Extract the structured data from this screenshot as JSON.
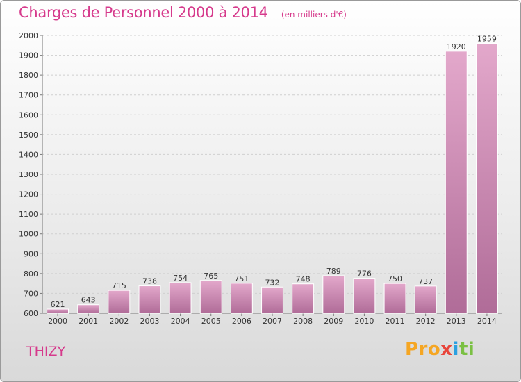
{
  "header": {
    "title": "Charges de Personnel 2000 à 2014",
    "unit": "(en milliers d'€)"
  },
  "commune": "THIZY",
  "logo": {
    "text": "Proxiti",
    "parts": [
      "Pro",
      "x",
      "i",
      "ti"
    ]
  },
  "colors": {
    "accent": "#d63a8c",
    "bar_light": "#e3a8cb",
    "bar_dark": "#b06c98"
  },
  "chart_data": {
    "type": "bar",
    "title": "Charges de Personnel 2000 à 2014",
    "subtitle": "(en milliers d'€)",
    "categories": [
      "2000",
      "2001",
      "2002",
      "2003",
      "2004",
      "2005",
      "2006",
      "2007",
      "2008",
      "2009",
      "2010",
      "2011",
      "2012",
      "2013",
      "2014"
    ],
    "values": [
      621,
      643,
      715,
      738,
      754,
      765,
      751,
      732,
      748,
      789,
      776,
      750,
      737,
      1920,
      1959
    ],
    "ylim": [
      600,
      2000
    ],
    "yticks": [
      600,
      700,
      800,
      900,
      1000,
      1100,
      1200,
      1300,
      1400,
      1500,
      1600,
      1700,
      1800,
      1900,
      2000
    ],
    "grid": true,
    "xlabel": "",
    "ylabel": ""
  }
}
